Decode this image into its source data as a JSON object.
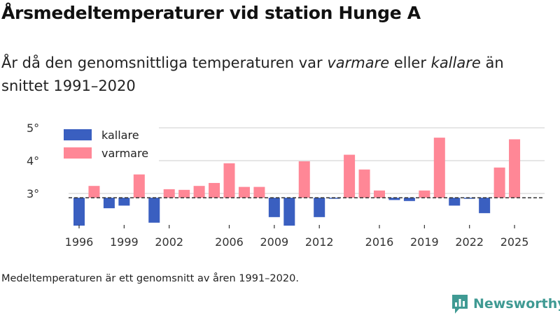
{
  "title": "Årsmedeltemperaturer vid station Hunge A",
  "subtitle": {
    "part1": "År då den genomsnittliga temperaturen var ",
    "warmer": "varmare",
    "part2": " eller ",
    "colder": "kallare",
    "part3": " än snittet 1991–2020"
  },
  "footnote": "Medeltemperaturen är ett genomsnitt av åren 1991–2020.",
  "brand": "Newsworthy",
  "colors": {
    "cold": "#3a5fc0",
    "warm": "#ff8796",
    "grid": "#dddddd",
    "brand": "#3f9a93"
  },
  "chart_data": {
    "type": "bar",
    "title": "Årsmedeltemperaturer vid station Hunge A",
    "baseline": 2.87,
    "ylim": [
      2.0,
      5.0
    ],
    "yticks": [
      3,
      4,
      5
    ],
    "ytick_labels": [
      "3°",
      "4°",
      "5°"
    ],
    "xticks": [
      1996,
      1999,
      2002,
      2006,
      2009,
      2012,
      2016,
      2019,
      2022,
      2025
    ],
    "legend": [
      {
        "label": "kallare",
        "key": "cold"
      },
      {
        "label": "varmare",
        "key": "warm"
      }
    ],
    "legend_position": "top-left",
    "years": [
      1996,
      1997,
      1998,
      1999,
      2000,
      2001,
      2002,
      2003,
      2004,
      2005,
      2006,
      2007,
      2008,
      2009,
      2010,
      2011,
      2012,
      2013,
      2014,
      2015,
      2016,
      2017,
      2018,
      2019,
      2020,
      2021,
      2022,
      2023,
      2024,
      2025
    ],
    "values": [
      2.02,
      3.23,
      2.55,
      2.63,
      3.58,
      2.11,
      3.13,
      3.11,
      3.23,
      3.32,
      3.92,
      3.2,
      3.2,
      2.28,
      2.02,
      3.98,
      2.28,
      2.86,
      4.18,
      3.73,
      3.09,
      2.8,
      2.77,
      3.09,
      4.7,
      2.63,
      2.86,
      2.4,
      3.79,
      4.65
    ]
  }
}
